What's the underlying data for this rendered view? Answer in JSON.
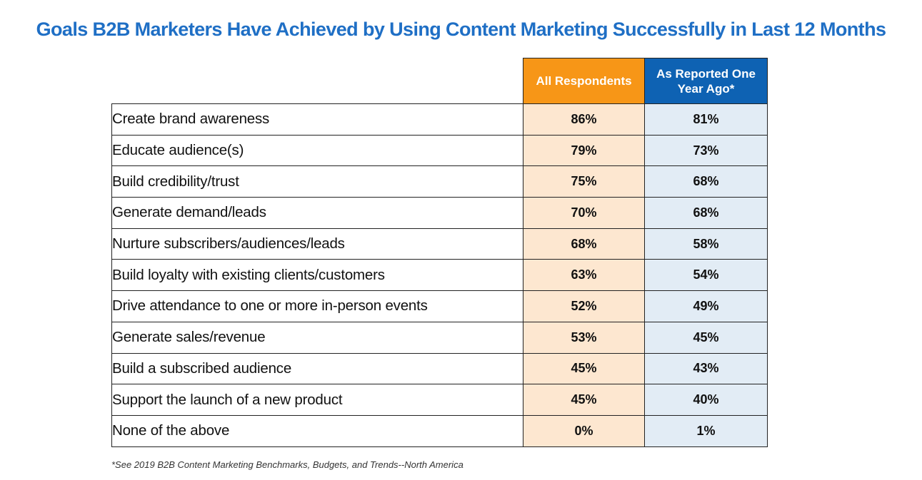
{
  "chart_data": {
    "type": "table",
    "title": "Goals B2B Marketers Have Achieved by Using Content Marketing Successfully in Last 12 Months",
    "columns": [
      "All Respondents",
      "As Reported One Year Ago*"
    ],
    "categories": [
      "Create brand awareness",
      "Educate audience(s)",
      "Build credibility/trust",
      "Generate demand/leads",
      "Nurture subscribers/audiences/leads",
      "Build loyalty with existing clients/customers",
      "Drive attendance to one or more in-person events",
      "Generate sales/revenue",
      "Build a subscribed audience",
      "Support the launch of a new product",
      "None of the above"
    ],
    "series": [
      {
        "name": "All Respondents",
        "values": [
          86,
          79,
          75,
          70,
          68,
          63,
          52,
          53,
          45,
          45,
          0
        ],
        "labels": [
          "86%",
          "79%",
          "75%",
          "70%",
          "68%",
          "63%",
          "52%",
          "53%",
          "45%",
          "45%",
          "0%"
        ]
      },
      {
        "name": "As Reported One Year Ago*",
        "values": [
          81,
          73,
          68,
          68,
          58,
          54,
          49,
          45,
          43,
          40,
          1
        ],
        "labels": [
          "81%",
          "73%",
          "68%",
          "68%",
          "58%",
          "54%",
          "49%",
          "45%",
          "43%",
          "40%",
          "1%"
        ]
      }
    ],
    "footnote": "*See 2019 B2B Content Marketing Benchmarks, Budgets, and Trends--North America",
    "colors": {
      "title": "#1f6fc5",
      "all_header": "#f79617",
      "all_cell": "#fde7d0",
      "prev_header": "#0e62b3",
      "prev_cell": "#e2ecf5"
    }
  }
}
